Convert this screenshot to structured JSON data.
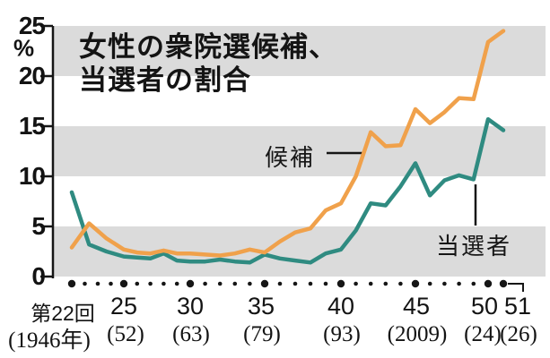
{
  "title": {
    "line1": "女性の衆院選候補、",
    "line2": "当選者の割合"
  },
  "y_axis": {
    "unit": "%"
  },
  "series_labels": {
    "candidates": "候補",
    "winners": "当選者"
  },
  "colors": {
    "candidates_line": "#F0A14B",
    "winners_line": "#2F8B81",
    "band_gray": "#DBDBDB",
    "axis_black": "#161616"
  },
  "chart_data": {
    "type": "line",
    "title": "女性の衆院選候補、当選者の割合",
    "y_unit": "%",
    "ylim": [
      0,
      25
    ],
    "y_ticks": [
      0,
      5,
      10,
      15,
      20,
      25
    ],
    "grid": "alternating gray horizontal bands at 0-5, 10-15, 20-25",
    "shaded_bands_pct": [
      [
        0,
        5
      ],
      [
        10,
        15
      ],
      [
        20,
        25
      ]
    ],
    "x_elections": [
      22,
      23,
      24,
      25,
      26,
      27,
      28,
      29,
      30,
      31,
      32,
      33,
      34,
      35,
      36,
      37,
      38,
      39,
      40,
      41,
      42,
      43,
      44,
      45,
      46,
      47,
      48,
      49,
      50,
      51
    ],
    "x_tick_labels": [
      {
        "election": "第22回",
        "year": "(1946年)"
      },
      {
        "election": "25",
        "year": "(52)"
      },
      {
        "election": "30",
        "year": "(63)"
      },
      {
        "election": "35",
        "year": "(79)"
      },
      {
        "election": "40",
        "year": "(93)"
      },
      {
        "election": "45",
        "year": "(2009)"
      },
      {
        "election": "50",
        "year": "(24)"
      },
      {
        "election": "51",
        "year": "(26)"
      }
    ],
    "legend_position": "inline labels with pointer lines (候補 upper-middle, 当選者 lower-right)",
    "series": [
      {
        "name": "候補",
        "color": "#F0A14B",
        "values": [
          2.9,
          5.3,
          3.8,
          2.7,
          2.4,
          2.3,
          2.6,
          2.3,
          2.3,
          2.2,
          2.1,
          2.3,
          2.7,
          2.4,
          3.5,
          4.4,
          4.8,
          6.6,
          7.3,
          10.0,
          14.4,
          13.0,
          13.1,
          16.7,
          15.3,
          16.4,
          17.8,
          17.7,
          23.4,
          24.5
        ]
      },
      {
        "name": "当選者",
        "color": "#2F8B81",
        "values": [
          8.4,
          3.2,
          2.5,
          2.0,
          1.9,
          1.8,
          2.3,
          1.6,
          1.5,
          1.5,
          1.7,
          1.5,
          1.4,
          2.2,
          1.8,
          1.6,
          1.4,
          2.3,
          2.7,
          4.6,
          7.3,
          7.1,
          9.0,
          11.3,
          8.1,
          9.6,
          10.1,
          9.7,
          15.7,
          14.6
        ]
      }
    ]
  }
}
